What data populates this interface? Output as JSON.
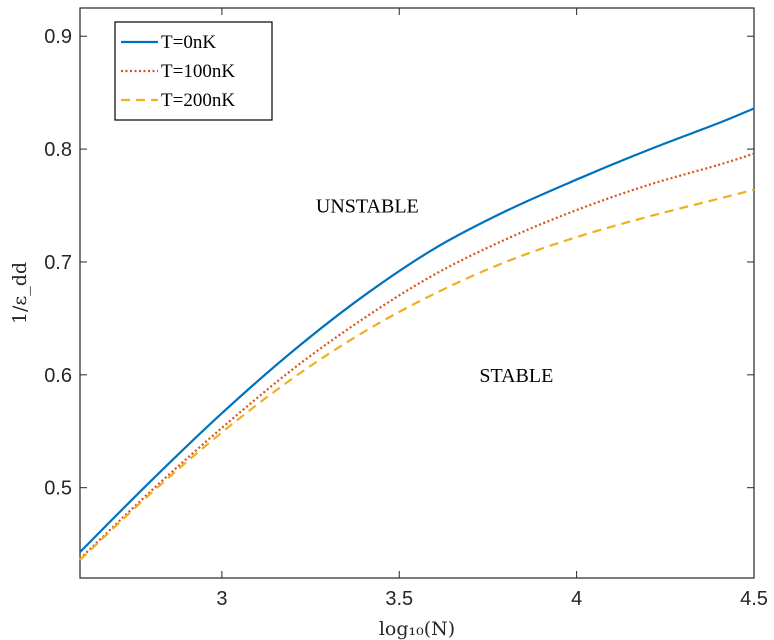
{
  "chart_data": {
    "type": "line",
    "xlabel": "log₁₀(N)",
    "ylabel": "1/ε_dd",
    "xlim": [
      2.6,
      4.5
    ],
    "ylim": [
      0.42,
      0.925
    ],
    "xticks": [
      3,
      3.5,
      4,
      4.5
    ],
    "xtick_labels": [
      "3",
      "3.5",
      "4",
      "4.5"
    ],
    "yticks": [
      0.5,
      0.6,
      0.7,
      0.8,
      0.9
    ],
    "ytick_labels": [
      "0.5",
      "0.6",
      "0.7",
      "0.8",
      "0.9"
    ],
    "grid": false,
    "legend_position": "top-left",
    "x": [
      2.6,
      2.8,
      3.0,
      3.2,
      3.4,
      3.6,
      3.8,
      4.0,
      4.2,
      4.4,
      4.5
    ],
    "series": [
      {
        "name": "T=0nK",
        "color": "#0072BD",
        "style": "solid",
        "values": [
          0.443,
          0.506,
          0.566,
          0.621,
          0.67,
          0.712,
          0.745,
          0.773,
          0.799,
          0.823,
          0.836
        ]
      },
      {
        "name": "T=100nK",
        "color": "#D95319",
        "style": "dotted",
        "values": [
          0.437,
          0.497,
          0.553,
          0.605,
          0.65,
          0.689,
          0.72,
          0.746,
          0.768,
          0.786,
          0.796
        ]
      },
      {
        "name": "T=200nK",
        "color": "#EDB120",
        "style": "dashed",
        "values": [
          0.436,
          0.495,
          0.549,
          0.597,
          0.638,
          0.672,
          0.7,
          0.722,
          0.74,
          0.756,
          0.764
        ]
      }
    ],
    "annotations": [
      {
        "text": "UNSTABLE",
        "x": 3.41,
        "y": 0.75
      },
      {
        "text": "STABLE",
        "x": 3.83,
        "y": 0.6
      }
    ]
  }
}
